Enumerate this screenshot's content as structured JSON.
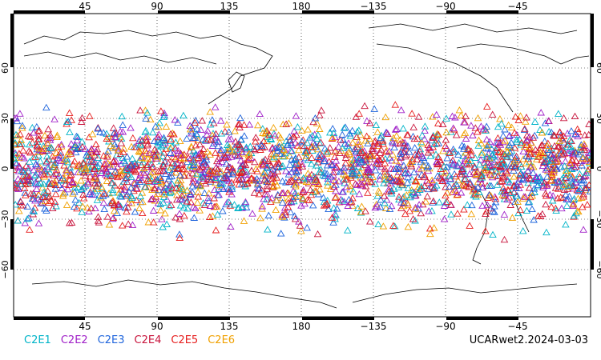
{
  "map": {
    "top_lon_labels": [
      "45",
      "90",
      "135",
      "180",
      "−135",
      "−90",
      "−45"
    ],
    "bottom_lon_labels": [
      "45",
      "90",
      "135",
      "180",
      "−135",
      "−90",
      "−45"
    ],
    "lat_labels": [
      "60",
      "30",
      "0",
      "−30",
      "−60"
    ],
    "lat_range": [
      -90,
      90
    ],
    "lon_range": [
      0,
      360
    ],
    "marker_shape": "open-triangle",
    "grid": "dotted"
  },
  "legend": {
    "items": [
      {
        "label": "C2E1",
        "color": "#00b4c8"
      },
      {
        "label": "C2E2",
        "color": "#a020c8"
      },
      {
        "label": "C2E3",
        "color": "#1e64dc"
      },
      {
        "label": "C2E4",
        "color": "#c8143c"
      },
      {
        "label": "C2E5",
        "color": "#e61e1e"
      },
      {
        "label": "C2E6",
        "color": "#f0a000"
      }
    ]
  },
  "footer": {
    "title": "UCARwet2.2024-03-03"
  }
}
